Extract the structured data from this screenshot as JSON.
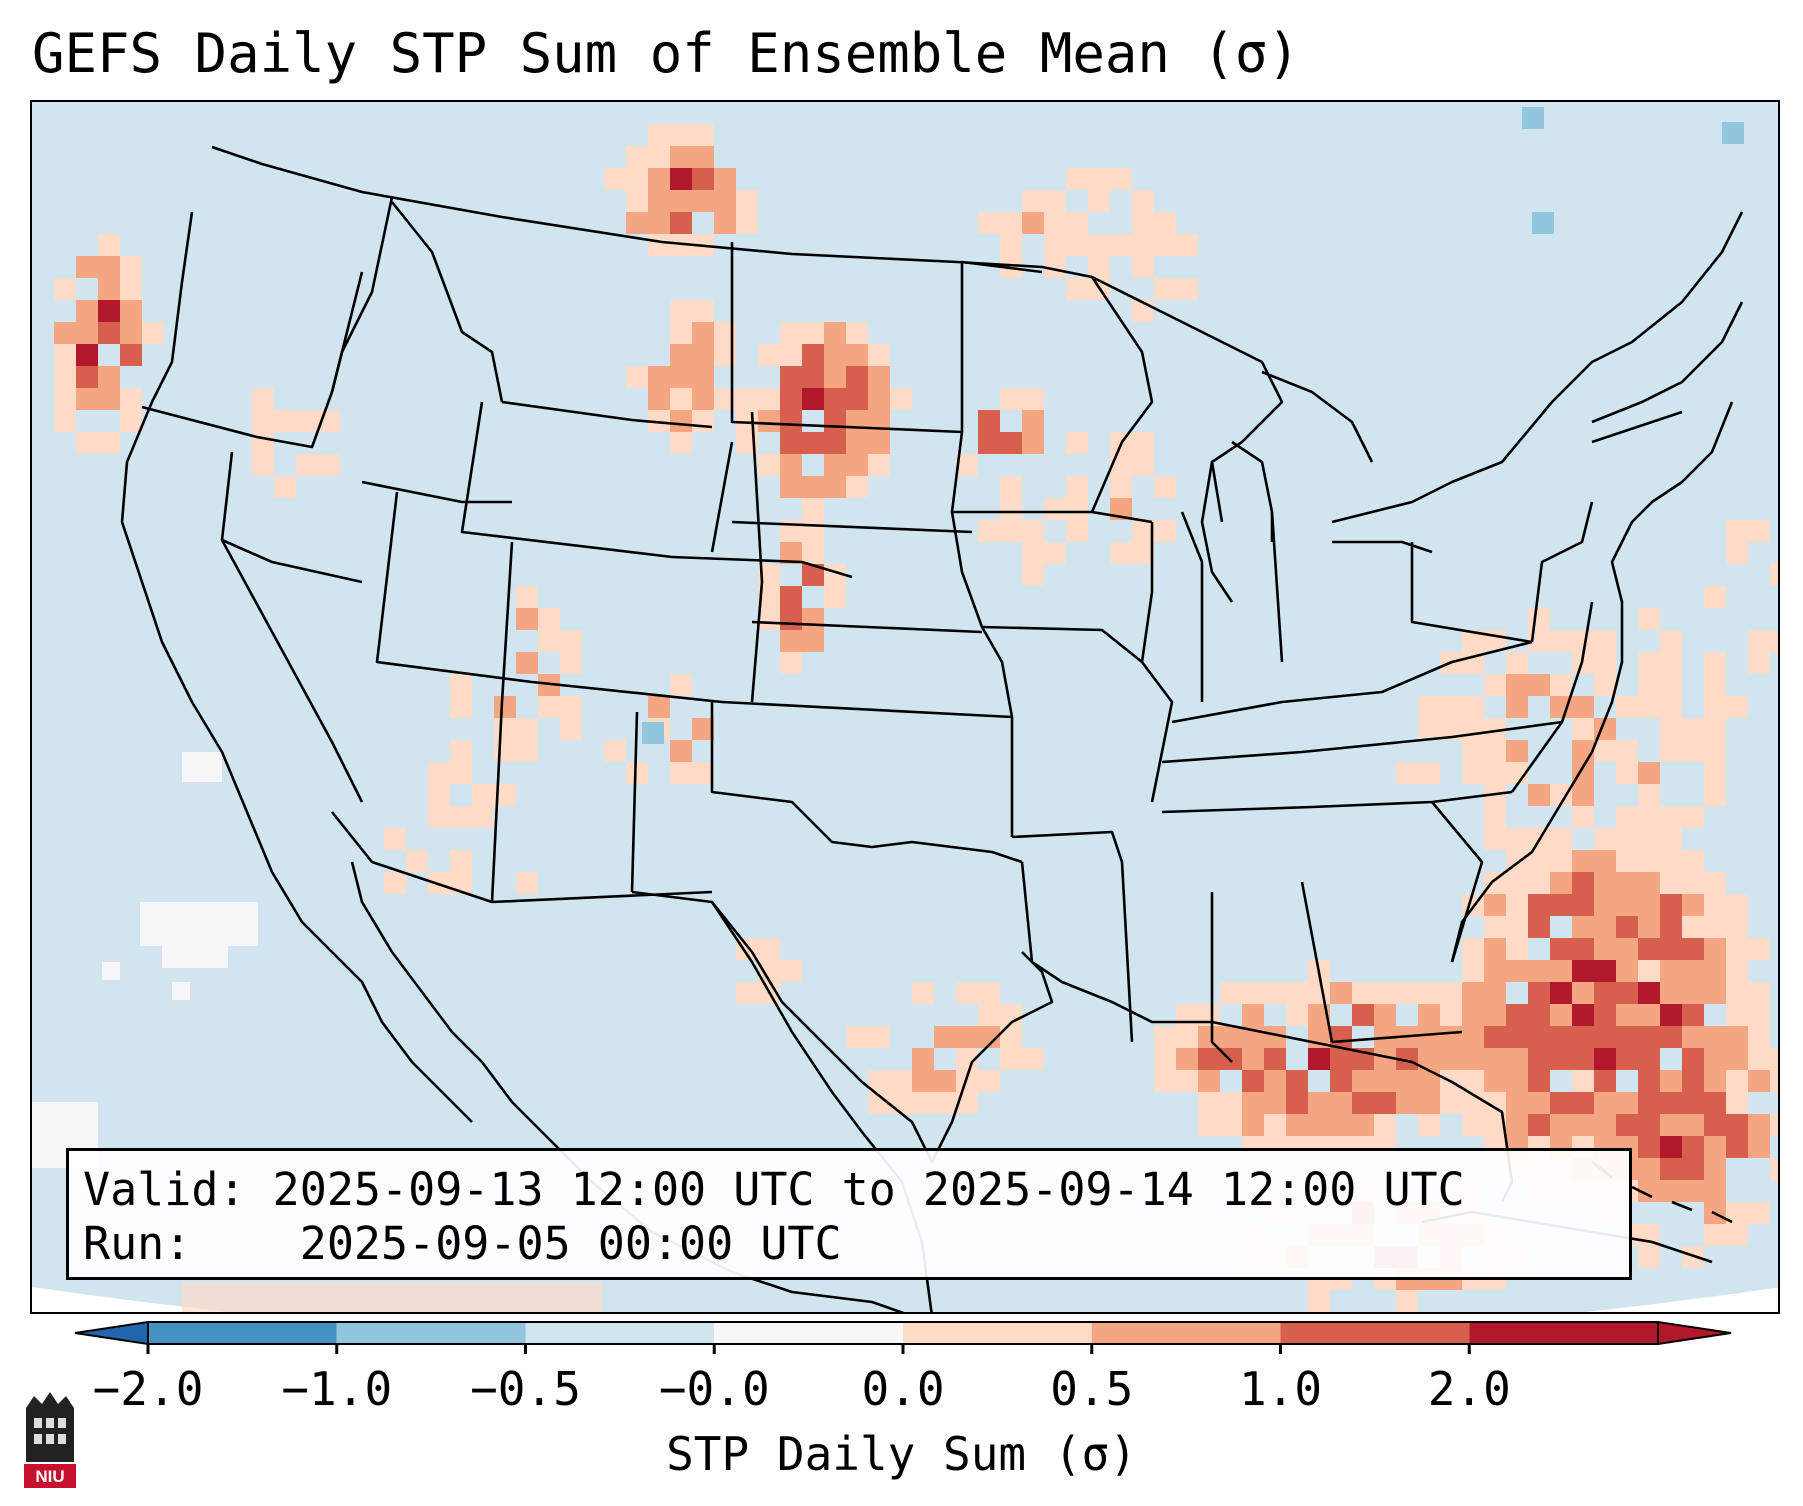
{
  "title": "GEFS Daily STP Sum of Ensemble Mean (σ)",
  "map": {
    "projection": "Lambert conformal, CONUS",
    "background_color": "#d1e5f0",
    "outline_color": "#000000",
    "regions": [
      "Pacific Northwest offshore",
      "Northern Plains (Montana / Dakotas)",
      "Upper Midwest",
      "Four Corners / Rockies",
      "Gulf of Mexico",
      "Western Atlantic / Bahamas"
    ]
  },
  "info": {
    "valid_label": "Valid:",
    "valid_value": "2025-09-13 12:00 UTC to 2025-09-14 12:00 UTC",
    "run_label": "Run:",
    "run_value": "2025-09-05 00:00 UTC"
  },
  "colorbar": {
    "label": "STP Daily Sum (σ)",
    "ticks": [
      "−2.0",
      "−1.0",
      "−0.5",
      "−0.0",
      "0.0",
      "0.5",
      "1.0",
      "2.0"
    ],
    "colors": [
      "#4393c3",
      "#92c5de",
      "#d1e5f0",
      "#f7f7f7",
      "#fddbc7",
      "#f4a582",
      "#d6604d",
      "#b2182b"
    ],
    "under_color": "#2166ac",
    "over_color": "#b2182b"
  },
  "logo": {
    "text": "NIU",
    "color": "#c8102e"
  }
}
